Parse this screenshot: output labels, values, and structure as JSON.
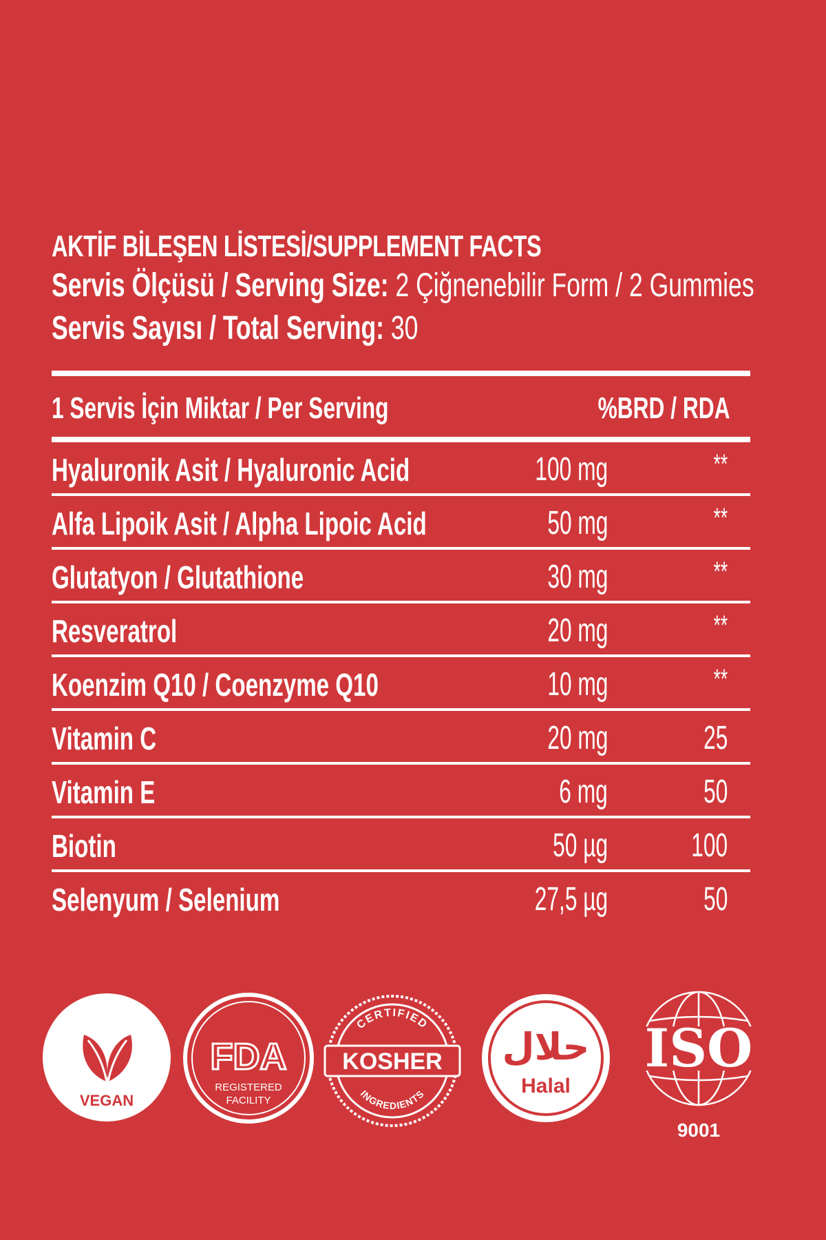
{
  "facts": {
    "title": "AKTİF BİLEŞEN LİSTESİ/SUPPLEMENT FACTS",
    "serving_size_label": "Servis Ölçüsü / Serving Size:",
    "serving_size_value": " 2 Çiğnenebilir Form / 2 Gummies",
    "total_serving_label": "Servis Sayısı / Total Serving:",
    "total_serving_value": " 30",
    "per_serving_header": "1 Servis İçin Miktar / Per Serving",
    "rda_header": "%BRD / RDA",
    "rows": [
      {
        "name": "Hyaluronik Asit / Hyaluronic Acid",
        "amount": "100 mg",
        "rda": "**"
      },
      {
        "name": "Alfa Lipoik Asit / Alpha Lipoic Acid",
        "amount": "50 mg",
        "rda": "**"
      },
      {
        "name": "Glutatyon / Glutathione",
        "amount": "30 mg",
        "rda": "**"
      },
      {
        "name": "Resveratrol",
        "amount": "20 mg",
        "rda": "**"
      },
      {
        "name": "Koenzim Q10 / Coenzyme Q10",
        "amount": "10 mg",
        "rda": "**"
      },
      {
        "name": "Vitamin C",
        "amount": "20 mg",
        "rda": "25"
      },
      {
        "name": "Vitamin E",
        "amount": "6 mg",
        "rda": "50"
      },
      {
        "name": "Biotin",
        "amount": "50 µg",
        "rda": "100"
      },
      {
        "name": "Selenyum / Selenium",
        "amount": "27,5 µg",
        "rda": "50"
      }
    ]
  },
  "badges": {
    "vegan": "VEGAN",
    "fda_mark": "FDA",
    "fda_line1": "REGISTERED",
    "fda_line2": "FACILITY",
    "kosher_top": "CERTIFIED",
    "kosher_main": "KOSHER",
    "kosher_bottom": "INGREDIENTS",
    "halal_arabic": "حلال",
    "halal": "Halal",
    "iso": "ISO",
    "iso_number": "9001"
  },
  "colors": {
    "background": "#d0373a",
    "foreground": "#ffffff"
  }
}
